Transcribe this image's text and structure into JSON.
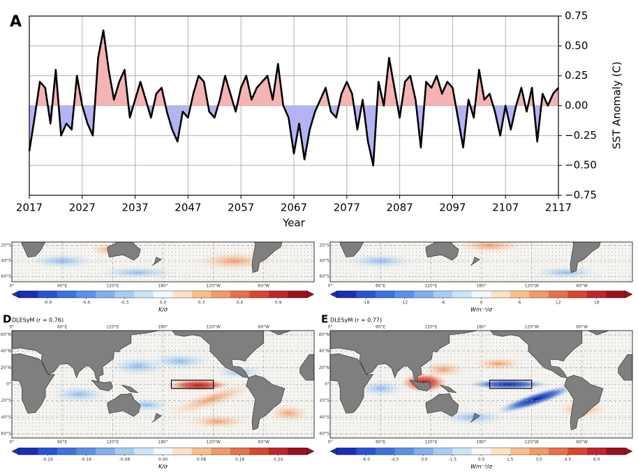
{
  "chart_data": {
    "type": "line",
    "panel": "A",
    "xlabel": "Year",
    "ylabel": "SST Anomaly (C)",
    "x": [
      2017,
      2018,
      2019,
      2020,
      2021,
      2022,
      2023,
      2024,
      2025,
      2026,
      2027,
      2028,
      2029,
      2030,
      2031,
      2032,
      2033,
      2034,
      2035,
      2036,
      2037,
      2038,
      2039,
      2040,
      2041,
      2042,
      2043,
      2044,
      2045,
      2046,
      2047,
      2048,
      2049,
      2050,
      2051,
      2052,
      2053,
      2054,
      2055,
      2056,
      2057,
      2058,
      2059,
      2060,
      2061,
      2062,
      2063,
      2064,
      2065,
      2066,
      2067,
      2068,
      2069,
      2070,
      2071,
      2072,
      2073,
      2074,
      2075,
      2076,
      2077,
      2078,
      2079,
      2080,
      2081,
      2082,
      2083,
      2084,
      2085,
      2086,
      2087,
      2088,
      2089,
      2090,
      2091,
      2092,
      2093,
      2094,
      2095,
      2096,
      2097,
      2098,
      2099,
      2100,
      2101,
      2102,
      2103,
      2104,
      2105,
      2106,
      2107,
      2108,
      2109,
      2110,
      2111,
      2112,
      2113,
      2114,
      2115,
      2116,
      2117
    ],
    "series": [
      {
        "color": "#000000",
        "fill_above": "#f4b4b4",
        "fill_below": "#b4b4f4",
        "values": [
          -0.38,
          -0.1,
          0.2,
          0.15,
          -0.15,
          0.3,
          -0.25,
          -0.15,
          -0.2,
          0.25,
          0.0,
          -0.15,
          -0.25,
          0.4,
          0.63,
          0.3,
          0.05,
          0.2,
          0.3,
          -0.1,
          0.05,
          0.2,
          0.05,
          -0.1,
          0.1,
          0.15,
          -0.05,
          -0.2,
          -0.3,
          -0.05,
          -0.1,
          0.1,
          0.25,
          0.2,
          -0.05,
          -0.1,
          0.05,
          0.25,
          0.1,
          -0.05,
          0.15,
          0.25,
          0.05,
          0.15,
          0.2,
          0.25,
          0.05,
          0.35,
          0.0,
          -0.1,
          -0.4,
          -0.15,
          -0.45,
          -0.2,
          -0.05,
          0.05,
          0.15,
          -0.05,
          -0.1,
          0.1,
          0.2,
          0.1,
          -0.2,
          0.05,
          -0.3,
          -0.5,
          0.2,
          0.0,
          0.4,
          0.15,
          -0.1,
          0.2,
          0.25,
          0.05,
          -0.35,
          0.2,
          0.15,
          0.25,
          0.1,
          0.2,
          0.15,
          -0.1,
          -0.35,
          0.05,
          -0.1,
          0.3,
          0.05,
          0.1,
          -0.05,
          -0.25,
          0.0,
          -0.2,
          0.0,
          0.15,
          -0.05,
          0.15,
          -0.3,
          0.1,
          0.0,
          0.1,
          0.15
        ]
      }
    ],
    "xlim": [
      2017,
      2117
    ],
    "xticks": [
      2017,
      2027,
      2037,
      2047,
      2057,
      2067,
      2077,
      2087,
      2097,
      2107,
      2117
    ],
    "ylim": [
      -0.75,
      0.75
    ],
    "yticks": [
      {
        "value": -0.75,
        "label": "−0.75"
      },
      {
        "value": -0.5,
        "label": "−0.50"
      },
      {
        "value": -0.25,
        "label": "−0.25"
      },
      {
        "value": 0,
        "label": "0.00"
      },
      0.25,
      {
        "value": 0.5,
        "label": "0.50"
      },
      0.75
    ],
    "grid": true
  },
  "maps": [
    {
      "lat_labels": [
        "20°S",
        "40°S",
        "60°S"
      ],
      "lon_labels": [
        "0°",
        "60°E",
        "120°E",
        "180°",
        "120°W",
        "60°W"
      ],
      "colorbar": {
        "ticks": [
          "-0.9",
          "-0.6",
          "-0.3",
          "0.0",
          "0.3",
          "0.6",
          "0.9"
        ],
        "label": "K/σ"
      }
    },
    {
      "lat_labels": [
        "20°S",
        "40°S",
        "60°S"
      ],
      "lon_labels": [
        "0°",
        "60°E",
        "120°E",
        "180°",
        "120°W",
        "60°W"
      ],
      "colorbar": {
        "ticks": [
          "-18",
          "-12",
          "-6",
          "0",
          "6",
          "12",
          "18"
        ],
        "label": "Wm⁻²/σ"
      }
    },
    {
      "panel": "D",
      "title": "DLESyM (r = 0.76)",
      "lat_labels": [
        "60°N",
        "40°N",
        "20°N",
        "0°",
        "20°S",
        "40°S",
        "60°S"
      ],
      "lon_labels": [
        "0°",
        "60°E",
        "120°E",
        "180°",
        "120°W",
        "60°W"
      ],
      "colorbar": {
        "ticks": [
          "-0.24",
          "-0.16",
          "-0.08",
          "0.00",
          "0.08",
          "0.16",
          "0.24"
        ],
        "label": "K/σ"
      }
    },
    {
      "panel": "E",
      "title": "DLESyM (r = 0.77)",
      "lat_labels": [
        "60°N",
        "40°N",
        "20°N",
        "0°",
        "20°S",
        "40°S",
        "60°S"
      ],
      "lon_labels": [
        "0°",
        "60°E",
        "120°E",
        "180°",
        "120°W",
        "60°W"
      ],
      "colorbar": {
        "ticks": [
          "-6.0",
          "-4.5",
          "-3.0",
          "-1.5",
          "0.0",
          "1.5",
          "3.0",
          "4.5",
          "6.0"
        ],
        "label": "Wm⁻²/σ"
      }
    }
  ]
}
